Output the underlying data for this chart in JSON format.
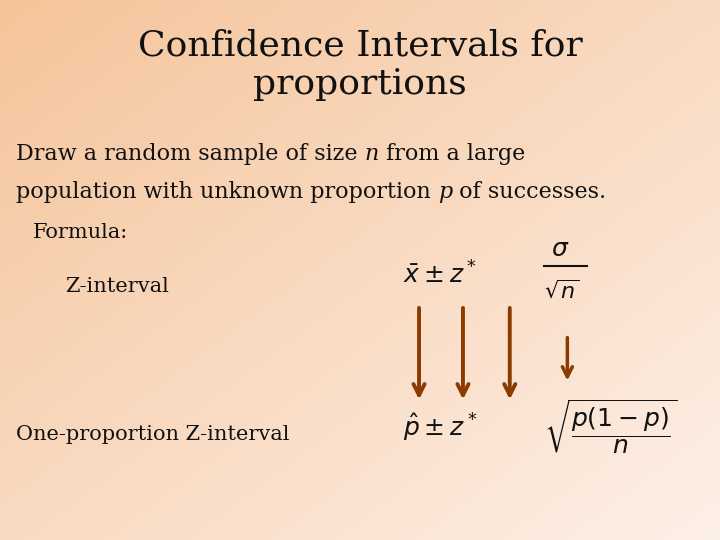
{
  "title_line1": "Confidence Intervals for",
  "title_line2": "proportions",
  "formula_label": "Formula:",
  "z_interval_label": "Z-interval",
  "one_prop_label": "One-proportion Z-interval",
  "bg_color_topleft": "#f5c49a",
  "bg_color_bottomright": "#fdf0e8",
  "title_fontsize": 26,
  "body_fontsize": 16,
  "formula_fontsize": 16,
  "label_fontsize": 15,
  "math_fontsize": 18,
  "arrow_color": "#8B3A00",
  "text_color": "#111111"
}
